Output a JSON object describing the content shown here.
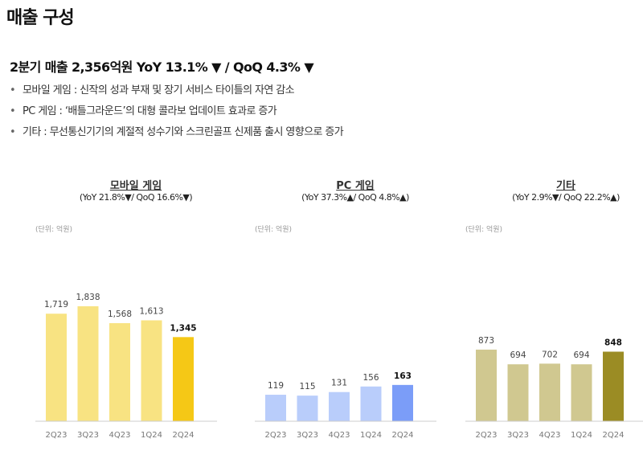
{
  "title": "매출 구성",
  "headline": "2분기 매출 2,356억원 YoY 13.1% ▼ / QoQ 4.3% ▼",
  "bullets": [
    "모바일 게임 : 신작의 성과 부재 및 장기 서비스 타이틀의 자연 감소",
    "PC 게임 : ‘배틀그라운드’의 대형 콜라보 업데이트 효과로 증가",
    "기타 : 무선통신기기의 계절적 성수기와 스크린골프 신제품 출시 영향으로 증가"
  ],
  "chart_data": [
    {
      "type": "bar",
      "title": "모바일 게임",
      "subtitle": "(YoY 21.8%▼/ QoQ 16.6%▼)",
      "unit": "(단위: 억원)",
      "categories": [
        "2Q23",
        "3Q23",
        "4Q23",
        "1Q24",
        "2Q24"
      ],
      "values": [
        1719,
        1838,
        1568,
        1613,
        1345
      ],
      "labels": [
        "1,719",
        "1,838",
        "1,568",
        "1,613",
        "1,345"
      ],
      "ylim": [
        0,
        2570
      ],
      "color": "#f8e382",
      "highlight_color": "#f5c816"
    },
    {
      "type": "bar",
      "title": "PC 게임",
      "subtitle": "(YoY 37.3%▲/ QoQ 4.8%▲)",
      "unit": "(단위: 억원)",
      "categories": [
        "2Q23",
        "3Q23",
        "4Q23",
        "1Q24",
        "2Q24"
      ],
      "values": [
        119,
        115,
        131,
        156,
        163
      ],
      "labels": [
        "119",
        "115",
        "131",
        "156",
        "163"
      ],
      "ylim": [
        0,
        722
      ],
      "color": "#b9cdfb",
      "highlight_color": "#7b9df8"
    },
    {
      "type": "bar",
      "title": "기타",
      "subtitle": "(YoY 2.9%▼/ QoQ 22.2%▲)",
      "unit": "(단위: 억원)",
      "categories": [
        "2Q23",
        "3Q23",
        "4Q23",
        "1Q24",
        "2Q24"
      ],
      "values": [
        873,
        694,
        702,
        694,
        848
      ],
      "labels": [
        "873",
        "694",
        "702",
        "694",
        "848"
      ],
      "ylim": [
        0,
        1960
      ],
      "color": "#d0c890",
      "highlight_color": "#9b8c24"
    }
  ]
}
